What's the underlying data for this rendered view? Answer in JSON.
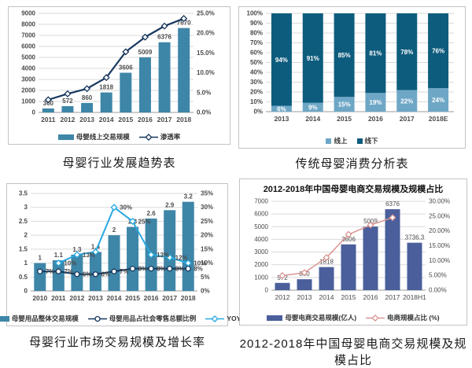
{
  "chart_data": [
    {
      "id": "industry-trend",
      "type": "combo",
      "caption": "母婴行业发展趋势表",
      "categories": [
        "2011",
        "2012",
        "2013",
        "2014",
        "2015",
        "2016",
        "2017",
        "2018"
      ],
      "left_axis": {
        "min": 0,
        "max": 9000,
        "step": 1000,
        "format": "int"
      },
      "right_axis": {
        "min": 0,
        "max": 25,
        "step": 5,
        "format": "pct1"
      },
      "grid": true,
      "legend_position": "bottom",
      "series": [
        {
          "name": "母婴线上交易规模",
          "type": "bar",
          "axis": "left",
          "color": "#3e86a8",
          "values": [
            360,
            572,
            860,
            1818,
            3606,
            5009,
            6376,
            7670
          ],
          "data_labels": [
            "360",
            "572",
            "860",
            "1818",
            "3606",
            "5009",
            "6376",
            "7670"
          ]
        },
        {
          "name": "渗透率",
          "type": "line",
          "axis": "right",
          "color": "#17375e",
          "marker": "diamond",
          "values": [
            3.2,
            4.7,
            6,
            8.8,
            15.3,
            19,
            21.8,
            23.7
          ]
        }
      ]
    },
    {
      "id": "traditional-consumption",
      "type": "stacked100",
      "caption": "传统母婴消费分析表",
      "categories": [
        "2013",
        "2014",
        "2015",
        "2016",
        "2017",
        "2018E"
      ],
      "left_axis": {
        "min": 0,
        "max": 100,
        "step": 10,
        "format": "pct0"
      },
      "grid": true,
      "legend_position": "bottom",
      "series": [
        {
          "name": "线上",
          "color": "#6ea7c6",
          "values": [
            6,
            9,
            15,
            19,
            22,
            24
          ],
          "data_labels": [
            "6%",
            "9%",
            "15%",
            "19%",
            "22%",
            "24%"
          ],
          "label_color": "#ffffff"
        },
        {
          "name": "线下",
          "color": "#0d5c7d",
          "values": [
            94,
            91,
            85,
            81,
            78,
            76
          ],
          "data_labels": [
            "94%",
            "91%",
            "85%",
            "81%",
            "78%",
            "76%"
          ],
          "label_color": "#ffffff"
        }
      ]
    },
    {
      "id": "market-scale-growth",
      "type": "combo",
      "caption": "母婴行业市场交易规模及增长率",
      "categories": [
        "2010",
        "2011",
        "2012",
        "2013",
        "2014",
        "2015",
        "2016",
        "2017",
        "2018"
      ],
      "left_axis": {
        "min": 0,
        "max": 3.5,
        "step": 0.5,
        "format": "num"
      },
      "right_axis": {
        "min": 0,
        "max": 35,
        "step": 5,
        "format": "pct0"
      },
      "grid": true,
      "legend_position": "bottom",
      "series": [
        {
          "name": "母婴用品整体交易规模",
          "type": "bar",
          "axis": "left",
          "color": "#3e86a8",
          "values": [
            1,
            1.1,
            1.3,
            1.4,
            2,
            2.3,
            2.6,
            2.9,
            3.2
          ],
          "data_labels": [
            "1",
            "1.1",
            "1.3",
            "1.4",
            "2",
            "2.3",
            "2.6",
            "2.9",
            "3.2"
          ]
        },
        {
          "name": "母婴用品占社会零售总额比例",
          "type": "line",
          "axis": "right",
          "color": "#17375e",
          "marker": "circle",
          "values": [
            7,
            7,
            6,
            6,
            7,
            8,
            8,
            8,
            8
          ],
          "data_labels": [
            "7%",
            "7%",
            "6%",
            "6%",
            "7%",
            "8%",
            "8%",
            "8%",
            "8%"
          ]
        },
        {
          "name": "YOY",
          "type": "line",
          "axis": "right",
          "color": "#29a9e1",
          "marker": "diamond",
          "values": [
            null,
            10,
            13,
            14,
            30,
            25,
            13,
            12,
            10
          ],
          "data_labels": [
            null,
            "10%",
            "13%",
            null,
            "30%",
            "25%",
            "13%",
            "12%",
            "10%"
          ]
        }
      ]
    },
    {
      "id": "ecommerce-scale",
      "type": "combo",
      "caption": "2012-2018年中国母婴电商交易规模及规模占比",
      "title": "2012-2018年中国母婴电商交易规模及规模占比",
      "categories": [
        "2012",
        "2013",
        "2014",
        "2015",
        "2016",
        "2017",
        "2018H1"
      ],
      "left_axis": {
        "min": 0,
        "max": 7000,
        "step": 1000,
        "format": "int"
      },
      "right_axis": {
        "min": 0,
        "max": 30,
        "step": 5,
        "format": "pct2"
      },
      "grid": true,
      "legend_position": "bottom",
      "series": [
        {
          "name": "母婴电商交易规模(亿人)",
          "type": "bar",
          "axis": "left",
          "color": "#4a5f9b",
          "values": [
            572,
            860,
            1818,
            3606,
            5009,
            6376,
            3736.3
          ],
          "data_labels": [
            "572",
            "860",
            "1818",
            "3606",
            "5009",
            "6376",
            "3736.3"
          ]
        },
        {
          "name": "电商规模占比 (%)",
          "type": "line",
          "axis": "right",
          "color": "#d99694",
          "marker": "diamond",
          "values": [
            4.9,
            5.9,
            11,
            18.8,
            22,
            24.5,
            null
          ]
        }
      ]
    }
  ]
}
